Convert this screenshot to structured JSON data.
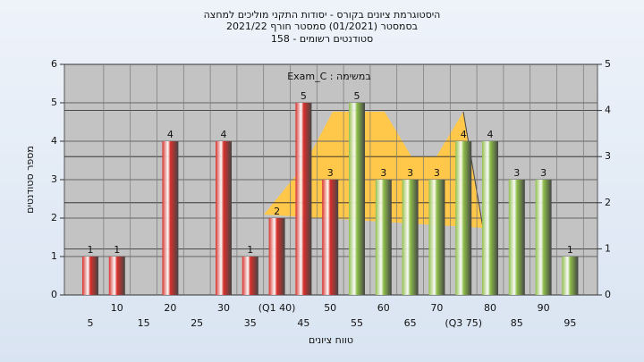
{
  "chart_data": {
    "type": "bar",
    "title_lines": [
      "היסטוגרמת ציונים בקורס - יסודות התקני מוליכים למחצה",
      "בסמסטר  (01/2021)  סמסטר חורף 2021/22",
      "סטודנטים רשומים - 158"
    ],
    "annotation": "Exam_C : במשימה",
    "y_label": "מספר סטודנטים",
    "x_label": "טווח ציונים",
    "categories": [
      "5",
      "10",
      "15",
      "20",
      "25",
      "30",
      "35",
      "(Q1 40)",
      "45",
      "50",
      "55",
      "60",
      "65",
      "70",
      "(Q3 75)",
      "80",
      "85",
      "90",
      "95"
    ],
    "values": [
      1,
      1,
      0,
      4,
      0,
      4,
      1,
      2,
      5,
      3,
      5,
      3,
      3,
      3,
      4,
      4,
      3,
      3,
      1
    ],
    "colors": [
      "#d9302c",
      "#d9302c",
      "#d9302c",
      "#d9302c",
      "#d9302c",
      "#d9302c",
      "#d9302c",
      "#d9302c",
      "#d9302c",
      "#d9302c",
      "#8fbf4a",
      "#8fbf4a",
      "#8fbf4a",
      "#8fbf4a",
      "#8fbf4a",
      "#8fbf4a",
      "#8fbf4a",
      "#8fbf4a",
      "#8fbf4a"
    ],
    "ylim": [
      0,
      6
    ],
    "yticks": [
      0,
      1,
      2,
      3,
      4,
      5,
      6
    ],
    "y2lim": [
      0,
      5
    ],
    "y2ticks": [
      0,
      1,
      2,
      3,
      4,
      5
    ],
    "grid": true
  }
}
